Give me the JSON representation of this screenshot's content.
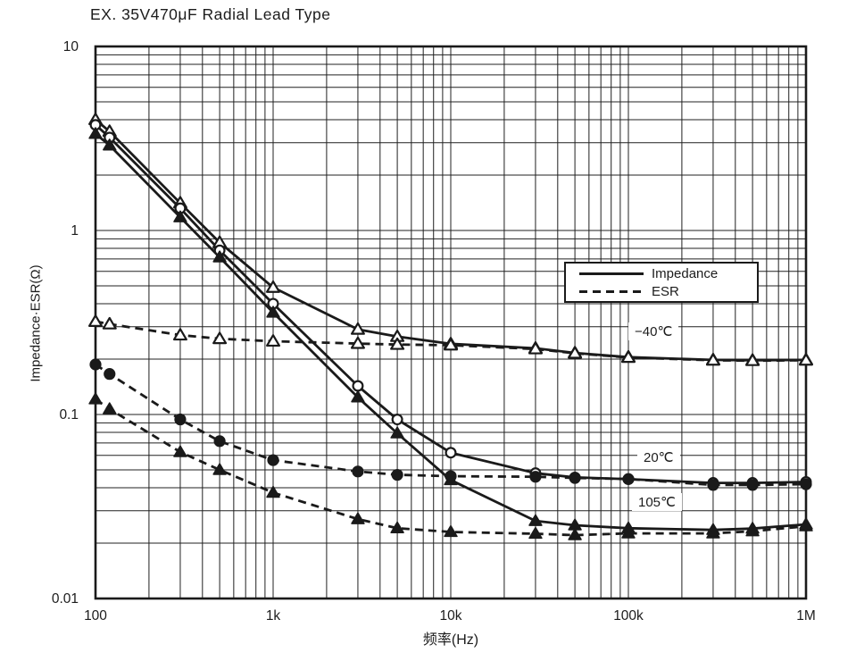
{
  "title": "EX. 35V470μF Radial Lead Type",
  "axes": {
    "y_label": "Impedance·ESR(Ω)",
    "x_label": "频率(Hz)",
    "x_ticks": [
      {
        "f": 100,
        "label": "100"
      },
      {
        "f": 1000,
        "label": "1k"
      },
      {
        "f": 10000,
        "label": "10k"
      },
      {
        "f": 100000,
        "label": "100k"
      },
      {
        "f": 1000000,
        "label": "1M"
      }
    ],
    "y_ticks": [
      {
        "v": 10,
        "label": "10"
      },
      {
        "v": 1,
        "label": "1"
      },
      {
        "v": 0.1,
        "label": "0.1"
      },
      {
        "v": 0.01,
        "label": "0.01"
      }
    ]
  },
  "legend": {
    "impedance_label": "Impedance",
    "esr_label": "ESR"
  },
  "annotations": {
    "minus40": "−40℃",
    "plus20": "20℃",
    "plus105": "105℃"
  },
  "colors": {
    "ink": "#1a1a1a",
    "background": "#ffffff"
  },
  "chart_data": {
    "type": "line",
    "title": "EX. 35V470μF Radial Lead Type",
    "xlabel": "频率(Hz)",
    "ylabel": "Impedance·ESR(Ω)",
    "x_scale": "log",
    "y_scale": "log",
    "xlim": [
      100,
      1000000
    ],
    "ylim": [
      0.01,
      10
    ],
    "grid": "both-log-minor",
    "legend_position": "upper-right-inside",
    "x": [
      100,
      120,
      300,
      500,
      1000,
      3000,
      5000,
      10000,
      30000,
      50000,
      100000,
      300000,
      500000,
      1000000
    ],
    "series": [
      {
        "name": "Impedance −40℃",
        "temperature": "−40℃",
        "quantity": "Impedance",
        "line": "solid",
        "marker": "triangle-open",
        "values": [
          4.0,
          3.45,
          1.41,
          0.86,
          0.49,
          0.29,
          0.265,
          0.242,
          0.229,
          0.216,
          0.205,
          0.198,
          0.197,
          0.198
        ]
      },
      {
        "name": "Impedance 20℃",
        "temperature": "20℃",
        "quantity": "Impedance",
        "line": "solid",
        "marker": "circle-open",
        "values": [
          3.75,
          3.2,
          1.32,
          0.78,
          0.4,
          0.143,
          0.094,
          0.062,
          0.048,
          0.0455,
          0.0445,
          0.0425,
          0.0425,
          0.043
        ]
      },
      {
        "name": "Impedance 105℃",
        "temperature": "105℃",
        "quantity": "Impedance",
        "line": "solid",
        "marker": "triangle-filled",
        "values": [
          3.35,
          2.9,
          1.18,
          0.715,
          0.358,
          0.124,
          0.079,
          0.044,
          0.0264,
          0.025,
          0.0241,
          0.0236,
          0.024,
          0.0253
        ]
      },
      {
        "name": "ESR −40℃",
        "temperature": "−40℃",
        "quantity": "ESR",
        "line": "dashed",
        "marker": "triangle-open",
        "values": [
          0.32,
          0.31,
          0.27,
          0.258,
          0.25,
          0.243,
          0.24,
          0.238,
          0.227,
          0.215,
          0.204,
          0.197,
          0.196,
          0.197
        ]
      },
      {
        "name": "ESR 20℃",
        "temperature": "20℃",
        "quantity": "ESR",
        "line": "dashed",
        "marker": "circle-filled",
        "values": [
          0.187,
          0.166,
          0.094,
          0.0716,
          0.0565,
          0.049,
          0.047,
          0.0462,
          0.0459,
          0.0452,
          0.0446,
          0.0414,
          0.0414,
          0.0418
        ]
      },
      {
        "name": "ESR 105℃",
        "temperature": "105℃",
        "quantity": "ESR",
        "line": "dashed",
        "marker": "triangle-filled",
        "values": [
          0.121,
          0.107,
          0.0625,
          0.05,
          0.0376,
          0.027,
          0.0241,
          0.023,
          0.0225,
          0.0221,
          0.0226,
          0.0226,
          0.0232,
          0.0247
        ]
      }
    ]
  }
}
